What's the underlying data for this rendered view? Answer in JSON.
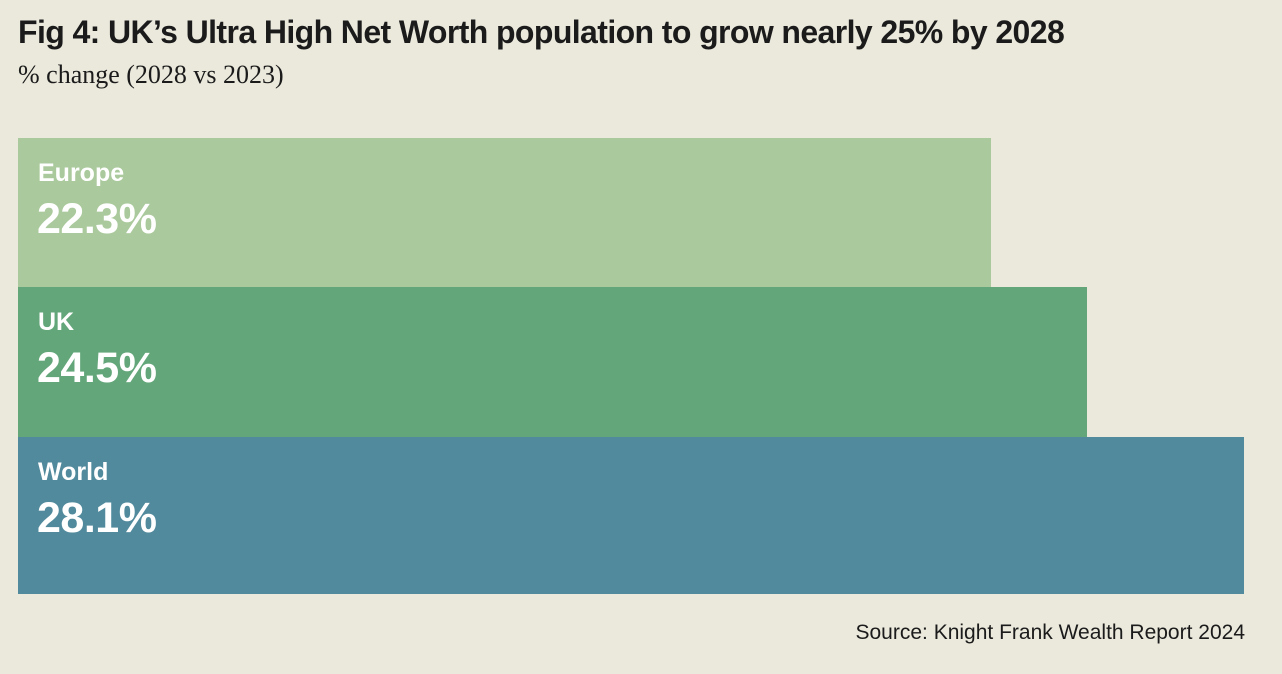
{
  "chart_data": {
    "type": "bar",
    "orientation": "horizontal",
    "title": "Fig 4: UK’s Ultra High Net Worth population to grow nearly 25% by 2028",
    "subtitle": "% change (2028 vs 2023)",
    "categories": [
      "Europe",
      "UK",
      "World"
    ],
    "values": [
      22.3,
      24.5,
      28.1
    ],
    "value_labels": [
      "22.3%",
      "24.5%",
      "28.1%"
    ],
    "colors": [
      "#aac99c",
      "#63a67a",
      "#518a9c"
    ],
    "xlim": [
      0,
      28.1
    ],
    "grid": false,
    "legend": "none"
  },
  "source": "Source: Knight Frank Wealth Report 2024"
}
